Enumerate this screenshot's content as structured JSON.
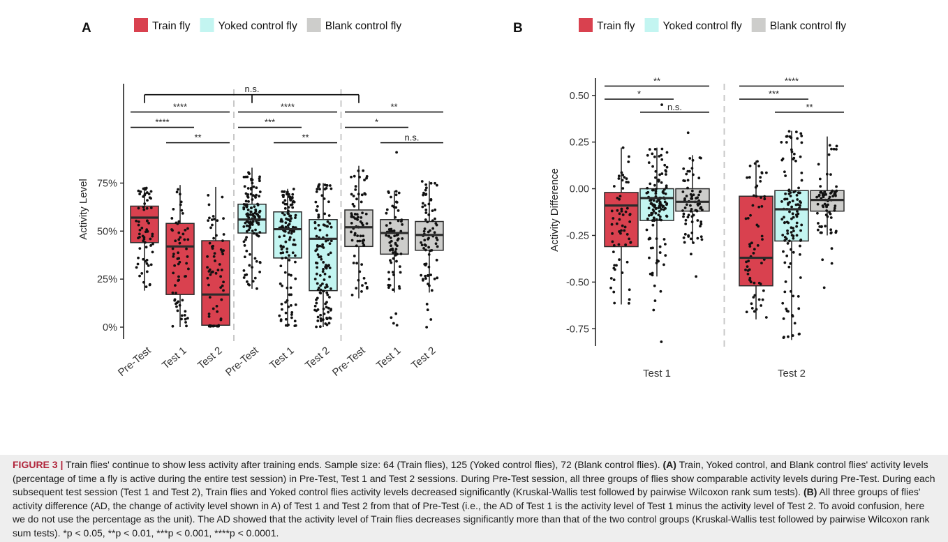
{
  "colors": {
    "train": "#d9414f",
    "yoked": "#c3f5f1",
    "blank": "#cdcdcb",
    "edge": "#2b2b2b",
    "divider": "#c8c8c8",
    "caption_bg": "#eeeeee",
    "figure_label": "#b0243a"
  },
  "chart_data": [
    {
      "panel": "A",
      "type": "box",
      "legend": [
        {
          "label": "Train fly",
          "color": "#d9414f"
        },
        {
          "label": "Yoked control fly",
          "color": "#c3f5f1"
        },
        {
          "label": "Blank control fly",
          "color": "#cdcdcb"
        }
      ],
      "xlabel": "",
      "ylabel": "Activity Level",
      "yticks": [
        0,
        25,
        50,
        75
      ],
      "ytick_labels": [
        "0%",
        "25%",
        "50%",
        "75%"
      ],
      "ylim": [
        -4,
        126
      ],
      "categories": [
        "Pre-Test",
        "Test 1",
        "Test 2",
        "Pre-Test",
        "Test 1",
        "Test 2",
        "Pre-Test",
        "Test 1",
        "Test 2"
      ],
      "boxes": [
        {
          "group": "Train fly",
          "category": "Pre-Test",
          "whisker_low": 19,
          "q1": 44,
          "median": 57,
          "q3": 63,
          "whisker_high": 73,
          "n": 64,
          "outliers": []
        },
        {
          "group": "Train fly",
          "category": "Test 1",
          "whisker_low": 0,
          "q1": 17,
          "median": 42,
          "q3": 54,
          "whisker_high": 74,
          "n": 64,
          "outliers": []
        },
        {
          "group": "Train fly",
          "category": "Test 2",
          "whisker_low": 0,
          "q1": 1,
          "median": 17,
          "q3": 45,
          "whisker_high": 73,
          "n": 64,
          "outliers": []
        },
        {
          "group": "Yoked control fly",
          "category": "Pre-Test",
          "whisker_low": 20,
          "q1": 49,
          "median": 56,
          "q3": 64,
          "whisker_high": 83,
          "n": 125,
          "outliers": []
        },
        {
          "group": "Yoked control fly",
          "category": "Test 1",
          "whisker_low": 0,
          "q1": 36,
          "median": 51,
          "q3": 60,
          "whisker_high": 72,
          "n": 125,
          "outliers": []
        },
        {
          "group": "Yoked control fly",
          "category": "Test 2",
          "whisker_low": 0,
          "q1": 19,
          "median": 46,
          "q3": 56,
          "whisker_high": 75,
          "n": 125,
          "outliers": []
        },
        {
          "group": "Blank control fly",
          "category": "Pre-Test",
          "whisker_low": 15,
          "q1": 42,
          "median": 52,
          "q3": 61,
          "whisker_high": 84,
          "n": 72,
          "outliers": []
        },
        {
          "group": "Blank control fly",
          "category": "Test 1",
          "whisker_low": 18,
          "q1": 38,
          "median": 49,
          "q3": 56,
          "whisker_high": 71,
          "n": 72,
          "outliers": [
            1,
            2,
            5,
            7,
            91
          ]
        },
        {
          "group": "Blank control fly",
          "category": "Test 2",
          "whisker_low": 18,
          "q1": 40,
          "median": 48,
          "q3": 55,
          "whisker_high": 76,
          "n": 72,
          "outliers": [
            0,
            4,
            9,
            12
          ]
        }
      ],
      "significance": [
        {
          "from": 0,
          "to": 2,
          "y": 112,
          "label": "****"
        },
        {
          "from": 0,
          "to": 1,
          "y": 104,
          "label": "****"
        },
        {
          "from": 1,
          "to": 2,
          "y": 96,
          "label": "**"
        },
        {
          "from": 3,
          "to": 5,
          "y": 112,
          "label": "****"
        },
        {
          "from": 3,
          "to": 4,
          "y": 104,
          "label": "***"
        },
        {
          "from": 4,
          "to": 5,
          "y": 96,
          "label": "**"
        },
        {
          "from": 6,
          "to": 8,
          "y": 112,
          "label": "**"
        },
        {
          "from": 6,
          "to": 7,
          "y": 104,
          "label": "*"
        },
        {
          "from": 7,
          "to": 8,
          "y": 96,
          "label": "n.s."
        }
      ],
      "group_comparison": {
        "positions": [
          0,
          3,
          6
        ],
        "y": 121,
        "label": "n.s."
      },
      "dividers_after": [
        2,
        5
      ],
      "grid": false,
      "legend_position": "top"
    },
    {
      "panel": "B",
      "type": "box",
      "legend": [
        {
          "label": "Train fly",
          "color": "#d9414f"
        },
        {
          "label": "Yoked control fly",
          "color": "#c3f5f1"
        },
        {
          "label": "Blank control fly",
          "color": "#cdcdcb"
        }
      ],
      "xlabel": "",
      "ylabel": "Activity Difference",
      "yticks": [
        -0.75,
        -0.5,
        -0.25,
        0,
        0.25,
        0.5
      ],
      "ytick_labels": [
        "-0.75",
        "-0.50",
        "-0.25",
        "0.00",
        "0.25",
        "0.50"
      ],
      "ylim": [
        -0.82,
        0.6
      ],
      "categories": [
        "Test 1",
        "Test 2"
      ],
      "boxes": [
        {
          "group": "Train fly",
          "category": "Test 1",
          "whisker_low": -0.62,
          "q1": -0.31,
          "median": -0.09,
          "q3": -0.02,
          "whisker_high": 0.22,
          "n": 64,
          "outliers": []
        },
        {
          "group": "Yoked control fly",
          "category": "Test 1",
          "whisker_low": -0.47,
          "q1": -0.17,
          "median": -0.05,
          "q3": 0.0,
          "whisker_high": 0.22,
          "n": 125,
          "outliers": [
            -0.52,
            -0.55,
            -0.6,
            -0.65,
            -0.82,
            0.45
          ]
        },
        {
          "group": "Blank control fly",
          "category": "Test 1",
          "whisker_low": -0.29,
          "q1": -0.12,
          "median": -0.07,
          "q3": 0.0,
          "whisker_high": 0.18,
          "n": 72,
          "outliers": [
            -0.35,
            -0.47,
            0.3
          ]
        },
        {
          "group": "Train fly",
          "category": "Test 2",
          "whisker_low": -0.7,
          "q1": -0.52,
          "median": -0.37,
          "q3": -0.04,
          "whisker_high": 0.15,
          "n": 64,
          "outliers": []
        },
        {
          "group": "Yoked control fly",
          "category": "Test 2",
          "whisker_low": -0.81,
          "q1": -0.28,
          "median": -0.11,
          "q3": -0.01,
          "whisker_high": 0.31,
          "n": 125,
          "outliers": []
        },
        {
          "group": "Blank control fly",
          "category": "Test 2",
          "whisker_low": -0.25,
          "q1": -0.12,
          "median": -0.06,
          "q3": -0.01,
          "whisker_high": 0.28,
          "n": 72,
          "outliers": [
            -0.32,
            -0.38,
            -0.4,
            -0.53
          ]
        }
      ],
      "significance": [
        {
          "from": 0,
          "to": 2,
          "y": 0.55,
          "label": "**"
        },
        {
          "from": 0,
          "to": 1,
          "y": 0.48,
          "label": "*"
        },
        {
          "from": 1,
          "to": 2,
          "y": 0.41,
          "label": "n.s."
        },
        {
          "from": 3,
          "to": 5,
          "y": 0.55,
          "label": "****"
        },
        {
          "from": 3,
          "to": 4,
          "y": 0.48,
          "label": "***"
        },
        {
          "from": 4,
          "to": 5,
          "y": 0.41,
          "label": "**"
        }
      ],
      "dividers_after": [
        2
      ],
      "grid": false,
      "legend_position": "top"
    }
  ],
  "caption": {
    "figure_label": "FIGURE 3 |",
    "intro": " Train flies' continue to show less activity after training ends. Sample size: 64 (Train flies), 125 (Yoked control flies), 72 (Blank control flies). ",
    "part_a_label": "(A)",
    "part_a_text": " Train, Yoked control, and Blank control flies' activity levels (percentage of time a fly is active during the entire test session) in Pre-Test, Test 1 and Test 2 sessions. During Pre-Test session, all three groups of flies show comparable activity levels during Pre-Test. During each subsequent test session (Test 1 and Test 2), Train flies and Yoked control flies activity levels decreased significantly (Kruskal-Wallis test followed by pairwise Wilcoxon rank sum tests). ",
    "part_b_label": "(B)",
    "part_b_text": " All three groups of flies' activity difference (AD, the change of activity level shown in A) of Test 1 and Test 2 from that of Pre-Test (i.e., the AD of Test 1 is the activity level of Test 1 minus the activity level of Test 2. To avoid confusion, here we do not use the percentage as the unit). The AD showed that the activity level of Train flies decreases significantly more than that of the two control groups (Kruskal-Wallis test followed by pairwise Wilcoxon rank sum tests). ",
    "pvalues": "*p < 0.05, **p < 0.01, ***p < 0.001, ****p < 0.0001."
  }
}
